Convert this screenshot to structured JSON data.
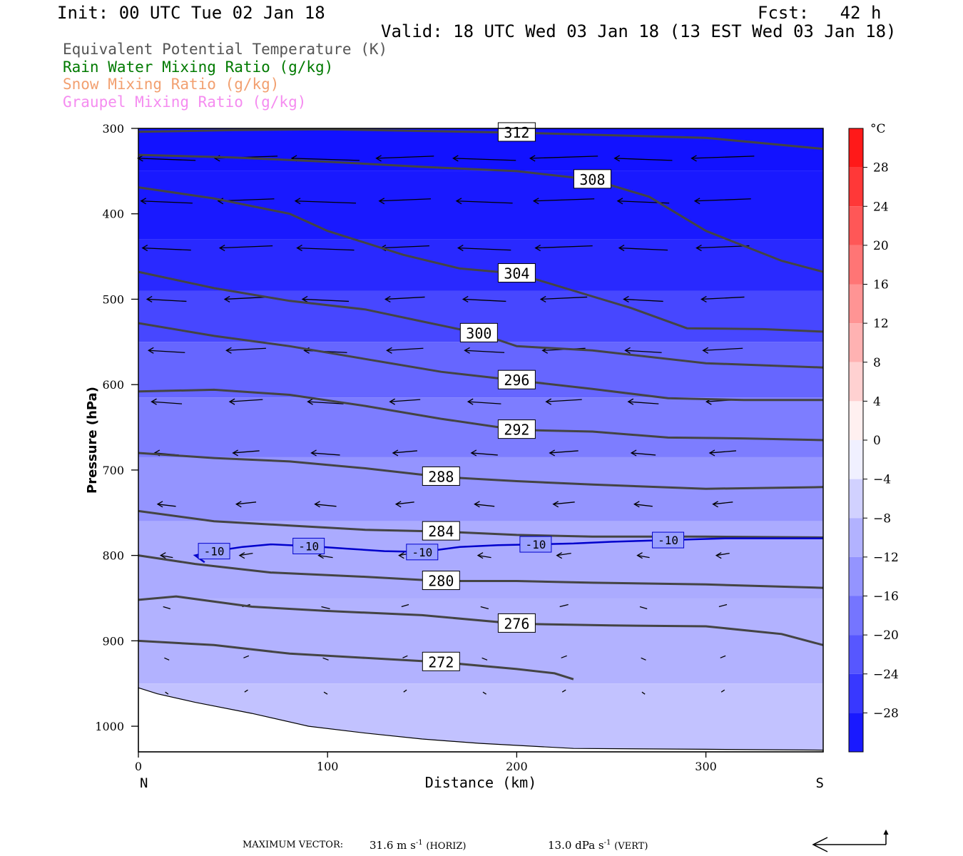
{
  "header": {
    "init": "Init: 00 UTC Tue 02 Jan 18",
    "fcst": "Fcst:   42 h",
    "valid": "Valid: 18 UTC Wed 03 Jan 18 (13 EST Wed 03 Jan 18)"
  },
  "legend": [
    {
      "text": "Equivalent Potential Temperature (K)",
      "color": "#555555"
    },
    {
      "text": "Rain Water Mixing Ratio (g/kg)",
      "color": "#007a00"
    },
    {
      "text": "Snow Mixing Ratio (g/kg)",
      "color": "#f2a070"
    },
    {
      "text": "Graupel Mixing Ratio (g/kg)",
      "color": "#f58cf0"
    }
  ],
  "footer": {
    "max_vector_label": "MAXIMUM VECTOR:",
    "horiz_value": "31.6 m s",
    "horiz_unit": "(HORIZ)",
    "vert_value": "13.0 dPa s",
    "vert_unit": "(VERT)",
    "exponent": "-1"
  },
  "chart_data": {
    "type": "contour",
    "xlabel": "Distance (km)",
    "ylabel": "Pressure (hPa)",
    "xlim": [
      0,
      362
    ],
    "ylim": [
      1030,
      300
    ],
    "y_scale": "linear, inverted",
    "xticks": [
      0,
      100,
      200,
      300
    ],
    "yticks": [
      300,
      400,
      500,
      600,
      700,
      800,
      900,
      1000
    ],
    "x_end_labels": {
      "left": "N",
      "right": "S"
    },
    "colorbar": {
      "unit": "°C",
      "ticks": [
        28,
        24,
        20,
        16,
        12,
        8,
        4,
        0,
        -4,
        -8,
        -12,
        -16,
        -20,
        -24,
        -28
      ],
      "range": [
        -32,
        32
      ],
      "cold_color": "#0a0aff",
      "warm_color": "#ff0a0a"
    },
    "filled_temperature_bands": [
      {
        "p": 300,
        "t": -31
      },
      {
        "p": 400,
        "t": -30
      },
      {
        "p": 460,
        "t": -28
      },
      {
        "p": 520,
        "t": -24
      },
      {
        "p": 580,
        "t": -20
      },
      {
        "p": 650,
        "t": -17
      },
      {
        "p": 720,
        "t": -14
      },
      {
        "p": 800,
        "t": -11
      },
      {
        "p": 900,
        "t": -10
      },
      {
        "p": 1000,
        "t": -8
      }
    ],
    "theta_e_contours": [
      {
        "level": "312",
        "points": [
          [
            0,
            304
          ],
          [
            50,
            302
          ],
          [
            100,
            301
          ],
          [
            150,
            303
          ],
          [
            200,
            305
          ],
          [
            250,
            308
          ],
          [
            300,
            311
          ],
          [
            362,
            324
          ]
        ]
      },
      {
        "level": "308",
        "points": [
          [
            0,
            331
          ],
          [
            50,
            334
          ],
          [
            100,
            339
          ],
          [
            150,
            345
          ],
          [
            200,
            350
          ],
          [
            240,
            360
          ],
          [
            270,
            380
          ],
          [
            300,
            420
          ],
          [
            340,
            455
          ],
          [
            362,
            468
          ]
        ]
      },
      {
        "level": "304",
        "points": [
          [
            0,
            369
          ],
          [
            40,
            382
          ],
          [
            80,
            400
          ],
          [
            100,
            420
          ],
          [
            140,
            448
          ],
          [
            170,
            464
          ],
          [
            200,
            470
          ],
          [
            230,
            490
          ],
          [
            260,
            510
          ],
          [
            290,
            534
          ],
          [
            330,
            535
          ],
          [
            362,
            538
          ]
        ]
      },
      {
        "level": "300",
        "points": [
          [
            0,
            468
          ],
          [
            40,
            487
          ],
          [
            80,
            502
          ],
          [
            120,
            512
          ],
          [
            150,
            526
          ],
          [
            180,
            540
          ],
          [
            200,
            555
          ],
          [
            240,
            560
          ],
          [
            300,
            575
          ],
          [
            362,
            580
          ]
        ]
      },
      {
        "level": "296",
        "points": [
          [
            0,
            528
          ],
          [
            40,
            543
          ],
          [
            80,
            555
          ],
          [
            120,
            570
          ],
          [
            160,
            585
          ],
          [
            200,
            595
          ],
          [
            240,
            605
          ],
          [
            280,
            616
          ],
          [
            320,
            618
          ],
          [
            362,
            618
          ]
        ]
      },
      {
        "level": "292",
        "points": [
          [
            0,
            608
          ],
          [
            40,
            606
          ],
          [
            80,
            612
          ],
          [
            120,
            625
          ],
          [
            160,
            640
          ],
          [
            200,
            653
          ],
          [
            240,
            655
          ],
          [
            280,
            662
          ],
          [
            320,
            663
          ],
          [
            362,
            665
          ]
        ]
      },
      {
        "level": "288",
        "points": [
          [
            0,
            680
          ],
          [
            40,
            686
          ],
          [
            80,
            690
          ],
          [
            120,
            698
          ],
          [
            160,
            708
          ],
          [
            200,
            713
          ],
          [
            240,
            717
          ],
          [
            300,
            722
          ],
          [
            362,
            720
          ]
        ]
      },
      {
        "level": "284",
        "points": [
          [
            0,
            748
          ],
          [
            40,
            760
          ],
          [
            80,
            765
          ],
          [
            120,
            770
          ],
          [
            160,
            772
          ],
          [
            200,
            776
          ],
          [
            240,
            778
          ],
          [
            300,
            778
          ],
          [
            362,
            779
          ]
        ]
      },
      {
        "level": "280",
        "points": [
          [
            0,
            800
          ],
          [
            30,
            810
          ],
          [
            70,
            820
          ],
          [
            120,
            825
          ],
          [
            160,
            830
          ],
          [
            200,
            830
          ],
          [
            240,
            832
          ],
          [
            300,
            834
          ],
          [
            362,
            838
          ]
        ]
      },
      {
        "level": "276",
        "points": [
          [
            0,
            852
          ],
          [
            20,
            848
          ],
          [
            60,
            860
          ],
          [
            100,
            865
          ],
          [
            150,
            870
          ],
          [
            200,
            880
          ],
          [
            250,
            882
          ],
          [
            300,
            883
          ],
          [
            340,
            892
          ],
          [
            362,
            905
          ]
        ]
      },
      {
        "level": "272",
        "points": [
          [
            0,
            900
          ],
          [
            40,
            905
          ],
          [
            80,
            915
          ],
          [
            120,
            920
          ],
          [
            160,
            925
          ],
          [
            200,
            933
          ],
          [
            220,
            938
          ],
          [
            230,
            945
          ]
        ]
      }
    ],
    "temperature_minus10_contour": {
      "label": "-10",
      "points": [
        [
          35,
          808
        ],
        [
          30,
          800
        ],
        [
          40,
          795
        ],
        [
          55,
          790
        ],
        [
          70,
          787
        ],
        [
          90,
          789
        ],
        [
          110,
          792
        ],
        [
          130,
          795
        ],
        [
          150,
          796
        ],
        [
          170,
          790
        ],
        [
          190,
          788
        ],
        [
          210,
          787
        ],
        [
          230,
          786
        ],
        [
          250,
          784
        ],
        [
          280,
          782
        ],
        [
          310,
          780
        ],
        [
          362,
          780
        ]
      ]
    },
    "wind_vector_reference": {
      "horizontal": "31.6 m s-1",
      "vertical": "13.0 dPa s-1"
    }
  }
}
